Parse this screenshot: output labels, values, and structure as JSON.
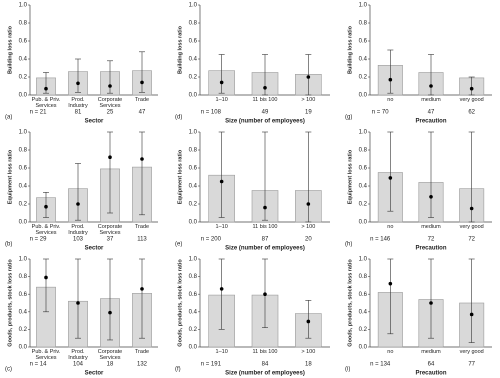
{
  "chart_data": [
    {
      "type": "bar",
      "panel": "(a)",
      "ylabel": "Building loss ratio",
      "xlabel": "Sector",
      "color": "#d9d9d9",
      "categories": [
        "Pub. & Priv. Services",
        "Prod. Industry",
        "Corporate Services",
        "Trade"
      ],
      "n_labels": [
        "n = 21",
        "81",
        "25",
        "47"
      ],
      "values": [
        0.19,
        0.26,
        0.26,
        0.27
      ],
      "points": [
        0.07,
        0.13,
        0.1,
        0.14
      ],
      "lower": [
        0.02,
        0.03,
        0.02,
        0.03
      ],
      "upper": [
        0.25,
        0.4,
        0.38,
        0.48
      ],
      "ylim": [
        0,
        1
      ],
      "yticks": [
        {
          "value": 0,
          "label": "0.0"
        },
        0.2,
        0.4,
        0.6,
        0.8,
        {
          "value": 1,
          "label": "1.0"
        }
      ]
    },
    {
      "type": "bar",
      "panel": "(d)",
      "ylabel": "Building loss ratio",
      "xlabel": "Size (number of employees)",
      "color": "#d9d9d9",
      "categories": [
        "1–10",
        "11 bis 100",
        "> 100"
      ],
      "n_labels": [
        "n = 108",
        "49",
        "19"
      ],
      "values": [
        0.27,
        0.25,
        0.23
      ],
      "points": [
        0.14,
        0.08,
        0.2
      ],
      "lower": [
        0.02,
        0.0,
        0.0
      ],
      "upper": [
        0.45,
        0.45,
        0.45
      ],
      "ylim": [
        0,
        1
      ],
      "yticks": [
        {
          "value": 0,
          "label": "0.0"
        },
        0.2,
        0.4,
        0.6,
        0.8,
        {
          "value": 1,
          "label": "1.0"
        }
      ]
    },
    {
      "type": "bar",
      "panel": "(g)",
      "ylabel": "Building loss ratio",
      "xlabel": "Precaution",
      "color": "#d9d9d9",
      "categories": [
        "no",
        "medium",
        "very good"
      ],
      "n_labels": [
        "n = 70",
        "47",
        "62"
      ],
      "values": [
        0.33,
        0.25,
        0.19
      ],
      "points": [
        0.17,
        0.1,
        0.07
      ],
      "lower": [
        0.02,
        0.0,
        0.0
      ],
      "upper": [
        0.5,
        0.45,
        0.2
      ],
      "ylim": [
        0,
        1
      ],
      "yticks": [
        {
          "value": 0,
          "label": "0.0"
        },
        0.2,
        0.4,
        0.6,
        0.8,
        {
          "value": 1,
          "label": "1.0"
        }
      ]
    },
    {
      "type": "bar",
      "panel": "(b)",
      "ylabel": "Equipment loss ratio",
      "xlabel": "Sector",
      "color": "#d9d9d9",
      "categories": [
        "Pub. & Priv. Services",
        "Prod. Industry",
        "Corporate Services",
        "Trade"
      ],
      "n_labels": [
        "n = 29",
        "103",
        "37",
        "113"
      ],
      "values": [
        0.27,
        0.37,
        0.59,
        0.61
      ],
      "points": [
        0.17,
        0.2,
        0.72,
        0.7
      ],
      "lower": [
        0.05,
        0.02,
        0.1,
        0.08
      ],
      "upper": [
        0.33,
        0.65,
        1.0,
        1.0
      ],
      "ylim": [
        0,
        1
      ],
      "yticks": [
        {
          "value": 0,
          "label": "0.0"
        },
        0.2,
        0.4,
        0.6,
        0.8,
        {
          "value": 1,
          "label": "1.0"
        }
      ]
    },
    {
      "type": "bar",
      "panel": "(e)",
      "ylabel": "Equipment loss ratio",
      "xlabel": "Size (number of employees)",
      "color": "#d9d9d9",
      "categories": [
        "1–10",
        "11 bis 100",
        "> 100"
      ],
      "n_labels": [
        "n = 200",
        "87",
        "20"
      ],
      "values": [
        0.52,
        0.35,
        0.35
      ],
      "points": [
        0.45,
        0.16,
        0.2
      ],
      "lower": [
        0.05,
        0.02,
        0.0
      ],
      "upper": [
        1.0,
        1.0,
        1.0
      ],
      "ylim": [
        0,
        1
      ],
      "yticks": [
        {
          "value": 0,
          "label": "0.0"
        },
        0.2,
        0.4,
        0.6,
        0.8,
        {
          "value": 1,
          "label": "1.0"
        }
      ]
    },
    {
      "type": "bar",
      "panel": "(h)",
      "ylabel": "Equipment loss ratio",
      "xlabel": "Precaution",
      "color": "#d9d9d9",
      "categories": [
        "no",
        "medium",
        "very good"
      ],
      "n_labels": [
        "n = 146",
        "72",
        "72"
      ],
      "values": [
        0.55,
        0.44,
        0.37
      ],
      "points": [
        0.49,
        0.28,
        0.15
      ],
      "lower": [
        0.12,
        0.05,
        0.0
      ],
      "upper": [
        1.0,
        1.0,
        1.0
      ],
      "ylim": [
        0,
        1
      ],
      "yticks": [
        {
          "value": 0,
          "label": "0.0"
        },
        0.2,
        0.4,
        0.6,
        0.8,
        {
          "value": 1,
          "label": "1.0"
        }
      ]
    },
    {
      "type": "bar",
      "panel": "(c)",
      "ylabel": "Goods, products, stock loss ratio",
      "xlabel": "Sector",
      "color": "#d9d9d9",
      "categories": [
        "Pub. & Priv. Services",
        "Prod. Industry",
        "Corporate Services",
        "Trade"
      ],
      "n_labels": [
        "n = 14",
        "104",
        "18",
        "132"
      ],
      "values": [
        0.68,
        0.52,
        0.55,
        0.61
      ],
      "points": [
        0.79,
        0.5,
        0.39,
        0.66
      ],
      "lower": [
        0.4,
        0.1,
        0.08,
        0.1
      ],
      "upper": [
        1.0,
        1.0,
        1.0,
        1.0
      ],
      "ylim": [
        0,
        1
      ],
      "yticks": [
        {
          "value": 0,
          "label": "0.0"
        },
        0.2,
        0.4,
        0.6,
        0.8,
        {
          "value": 1,
          "label": "1.0"
        }
      ]
    },
    {
      "type": "bar",
      "panel": "(f)",
      "ylabel": "Goods, products, stock loss ratio",
      "xlabel": "Size (number of employees)",
      "color": "#d9d9d9",
      "categories": [
        "1–10",
        "11 bis 100",
        "> 100"
      ],
      "n_labels": [
        "n = 191",
        "84",
        "18"
      ],
      "values": [
        0.59,
        0.59,
        0.38
      ],
      "points": [
        0.66,
        0.6,
        0.29
      ],
      "lower": [
        0.2,
        0.22,
        0.1
      ],
      "upper": [
        1.0,
        1.0,
        0.53
      ],
      "ylim": [
        0,
        1
      ],
      "yticks": [
        {
          "value": 0,
          "label": "0.0"
        },
        0.2,
        0.4,
        0.6,
        0.8,
        {
          "value": 1,
          "label": "1.0"
        }
      ]
    },
    {
      "type": "bar",
      "panel": "(i)",
      "ylabel": "Goods, products, stock loss ratio",
      "xlabel": "Precaution",
      "color": "#d9d9d9",
      "categories": [
        "no",
        "medium",
        "very good"
      ],
      "n_labels": [
        "n = 134",
        "64",
        "77"
      ],
      "values": [
        0.62,
        0.54,
        0.5
      ],
      "points": [
        0.72,
        0.5,
        0.37
      ],
      "lower": [
        0.15,
        0.1,
        0.05
      ],
      "upper": [
        1.0,
        1.0,
        1.0
      ],
      "ylim": [
        0,
        1
      ],
      "yticks": [
        {
          "value": 0,
          "label": "0.0"
        },
        0.2,
        0.4,
        0.6,
        0.8,
        {
          "value": 1,
          "label": "1.0"
        }
      ]
    }
  ]
}
